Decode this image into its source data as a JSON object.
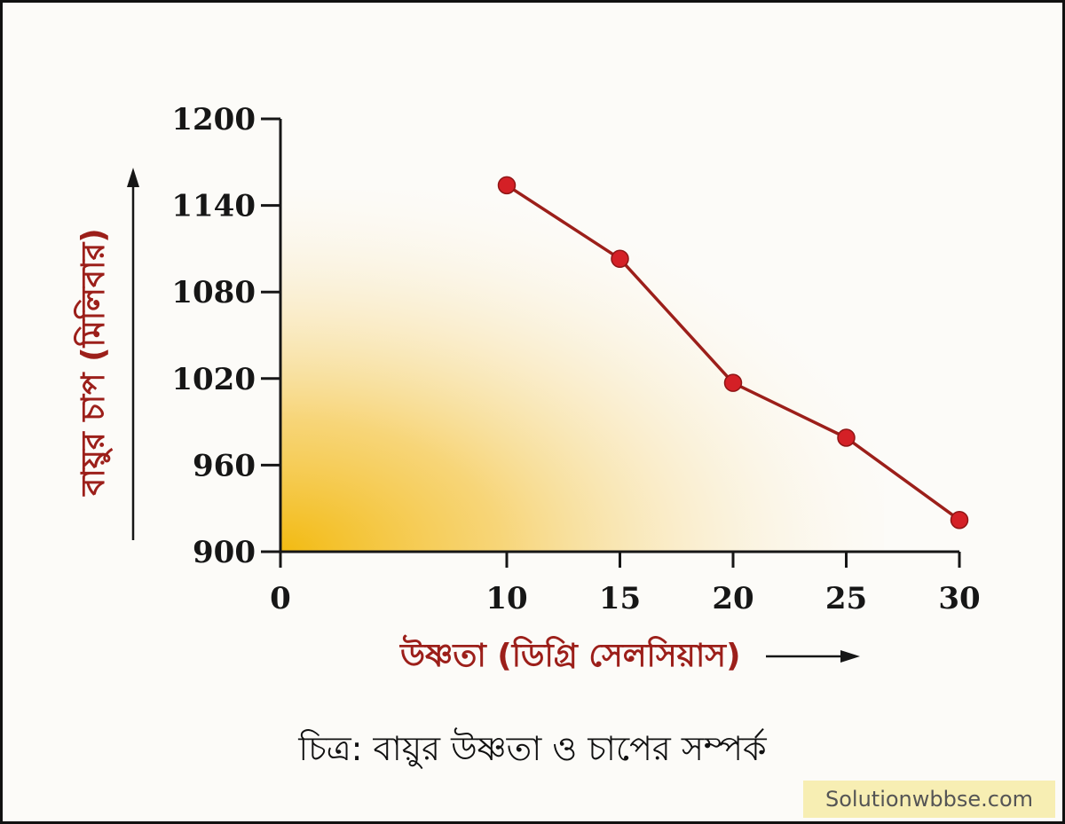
{
  "chart_data": {
    "type": "line",
    "x_ticks": [
      0,
      10,
      15,
      20,
      25,
      30
    ],
    "y_ticks": [
      900,
      960,
      1020,
      1080,
      1140,
      1200
    ],
    "xlim": [
      0,
      30
    ],
    "ylim": [
      900,
      1200
    ],
    "xlabel": "উষ্ণতা (ডিগ্রি সেলসিয়াস)",
    "ylabel": "বায়ুর চাপ (মিলিবার)",
    "series": [
      {
        "x": [
          10,
          15,
          20,
          25,
          30
        ],
        "y": [
          1154,
          1103,
          1017,
          979,
          922
        ]
      }
    ],
    "line_color": "#9c1f1a",
    "marker_color": "#d42026",
    "fill_color": "#f2b705",
    "axis_title_color": "#9c1f1a"
  },
  "caption": "চিত্র: বায়ুর উষ্ণতা ও চাপের সম্পর্ক",
  "watermark": "Solutionwbbse.com"
}
